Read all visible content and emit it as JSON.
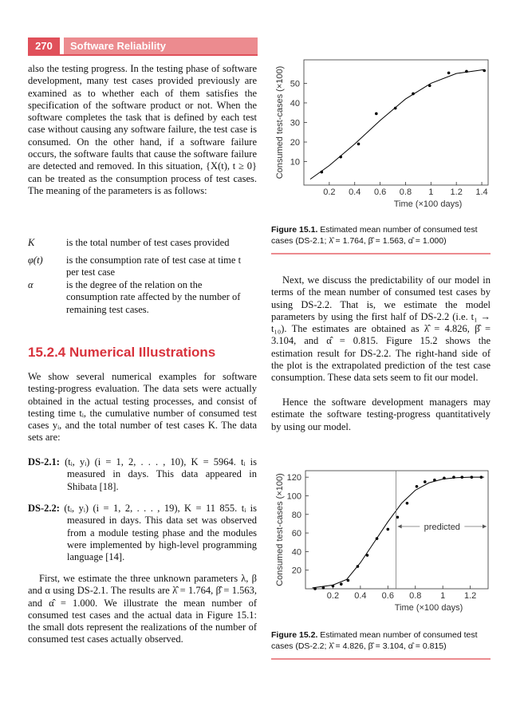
{
  "header": {
    "page_number": "270",
    "running_title": "Software Reliability"
  },
  "left_column": {
    "paragraph_1": "also the testing progress. In the testing phase of software development, many test cases provided previously are examined as to whether each of them satisfies the specification of the software product or not. When the software completes the task that is defined by each test case without causing any software failure, the test case is consumed. On the other hand, if a software failure occurs, the software faults that cause the software failure are detected and removed. In this situation, {X(t), t ≥ 0} can be treated as the consumption process of test cases. The meaning of the parameters is as follows:",
    "definitions": [
      {
        "term": "K",
        "text": "is the total number of test cases provided"
      },
      {
        "term": "φ(t)",
        "text": "is the consumption rate of test case at time t per test case"
      },
      {
        "term": "α",
        "text": "is the degree of the relation on the consumption rate affected by the number of remaining test cases."
      }
    ],
    "section_heading": "15.2.4   Numerical Illustrations",
    "paragraph_2": "We show several numerical examples for software testing-progress evaluation. The data sets were actually obtained in the actual testing processes, and consist of testing time tᵢ, the cumulative number of consumed test cases yᵢ, and the total number of test cases K. The data sets are:",
    "datasets": [
      {
        "label": "DS-2.1:",
        "text": "(tᵢ, yᵢ) (i = 1, 2, . . . , 10), K = 5964. tᵢ is measured in days. This data appeared in Shibata [18]."
      },
      {
        "label": "DS-2.2:",
        "text": "(tᵢ, yᵢ) (i = 1, 2, . . . , 19), K = 11 855. tᵢ is measured in days. This data set was observed from a module testing phase and the modules were implemented by high-level programming language [14]."
      }
    ],
    "paragraph_3": "First, we estimate the three unknown parameters λ, β and α using DS-2.1. The results are λ̂ = 1.764, β̂ = 1.563, and α̂ = 1.000. We illustrate the mean number of consumed test cases and the actual data in Figure 15.1: the small dots represent the realizations of the number of consumed test cases actually observed."
  },
  "right_column": {
    "paragraph_1": "Next, we discuss the predictability of our model in terms of the mean number of consumed test cases by using DS-2.2. That is, we estimate the model parameters by using the first half of DS-2.2 (i.e. t₁ → t₁₀). The estimates are obtained as λ̂ = 4.826, β̂ = 3.104, and α̂ = 0.815. Figure 15.2 shows the estimation result for DS-2.2. The right-hand side of the plot is the extrapolated prediction of the test case consumption. These data sets seem to fit our model.",
    "paragraph_2": "Hence the software development managers may estimate the software testing-progress quantitatively by using our model."
  },
  "chart_data": [
    {
      "type": "scatter",
      "caption_label": "Figure 15.1.",
      "caption_text": "Estimated mean number of consumed test cases (DS-2.1; λ̂ = 1.764, β̂ = 1.563, α̂ = 1.000)",
      "x_label": "Time (×100 days)",
      "y_label": "Consumed test-cases (×100)",
      "xlim": [
        0,
        1.45
      ],
      "xticks": [
        0.2,
        0.4,
        0.6,
        0.8,
        1,
        1.2,
        1.4
      ],
      "ylim": [
        -2,
        62
      ],
      "yticks": [
        10,
        20,
        30,
        40,
        50
      ],
      "series": [
        {
          "style": "points",
          "color": "#000000",
          "x": [
            0.14,
            0.29,
            0.43,
            0.57,
            0.72,
            0.86,
            0.99,
            1.14,
            1.28,
            1.42
          ],
          "values": [
            4.7,
            12.4,
            19,
            34.5,
            37.3,
            44.7,
            48.8,
            55.3,
            56.1,
            56.5
          ]
        },
        {
          "style": "line",
          "color": "#000000",
          "x": [
            0.05,
            0.2,
            0.4,
            0.6,
            0.8,
            1.0,
            1.2,
            1.42
          ],
          "values": [
            1,
            8,
            19,
            31,
            42,
            50,
            55,
            57
          ]
        }
      ]
    },
    {
      "type": "scatter",
      "caption_label": "Figure 15.2.",
      "caption_text": "Estimated mean number of consumed test cases (DS-2.2; λ̂ = 4.826, β̂ = 3.104, α̂ = 0.815)",
      "x_label": "Time (×100 days)",
      "y_label": "Consumed test-cases (×100)",
      "xlim": [
        0,
        1.33
      ],
      "xticks": [
        0.2,
        0.4,
        0.6,
        0.8,
        1,
        1.2
      ],
      "ylim": [
        0,
        127
      ],
      "yticks": [
        20,
        40,
        60,
        80,
        100,
        120
      ],
      "series": [
        {
          "style": "points",
          "color": "#000000",
          "x": [
            0.07,
            0.13,
            0.2,
            0.26,
            0.31,
            0.38,
            0.45,
            0.52,
            0.6,
            0.67,
            0.74,
            0.81,
            0.87,
            0.94,
            1.01,
            1.08,
            1.14,
            1.21,
            1.28
          ],
          "values": [
            0,
            1,
            3,
            5,
            9,
            24,
            36,
            54,
            64,
            77,
            92,
            110,
            115,
            117,
            119,
            120,
            120,
            120,
            120
          ]
        },
        {
          "style": "line",
          "color": "#000000",
          "x": [
            0.05,
            0.2,
            0.3,
            0.4,
            0.5,
            0.6,
            0.7,
            0.8,
            0.9,
            1.0,
            1.1,
            1.2,
            1.3
          ],
          "values": [
            1,
            4,
            10,
            28,
            50,
            72,
            92,
            106,
            114,
            118,
            119.5,
            120,
            120
          ]
        }
      ],
      "annotation": {
        "text": "predicted",
        "x": 0.66,
        "y": 67
      }
    }
  ]
}
